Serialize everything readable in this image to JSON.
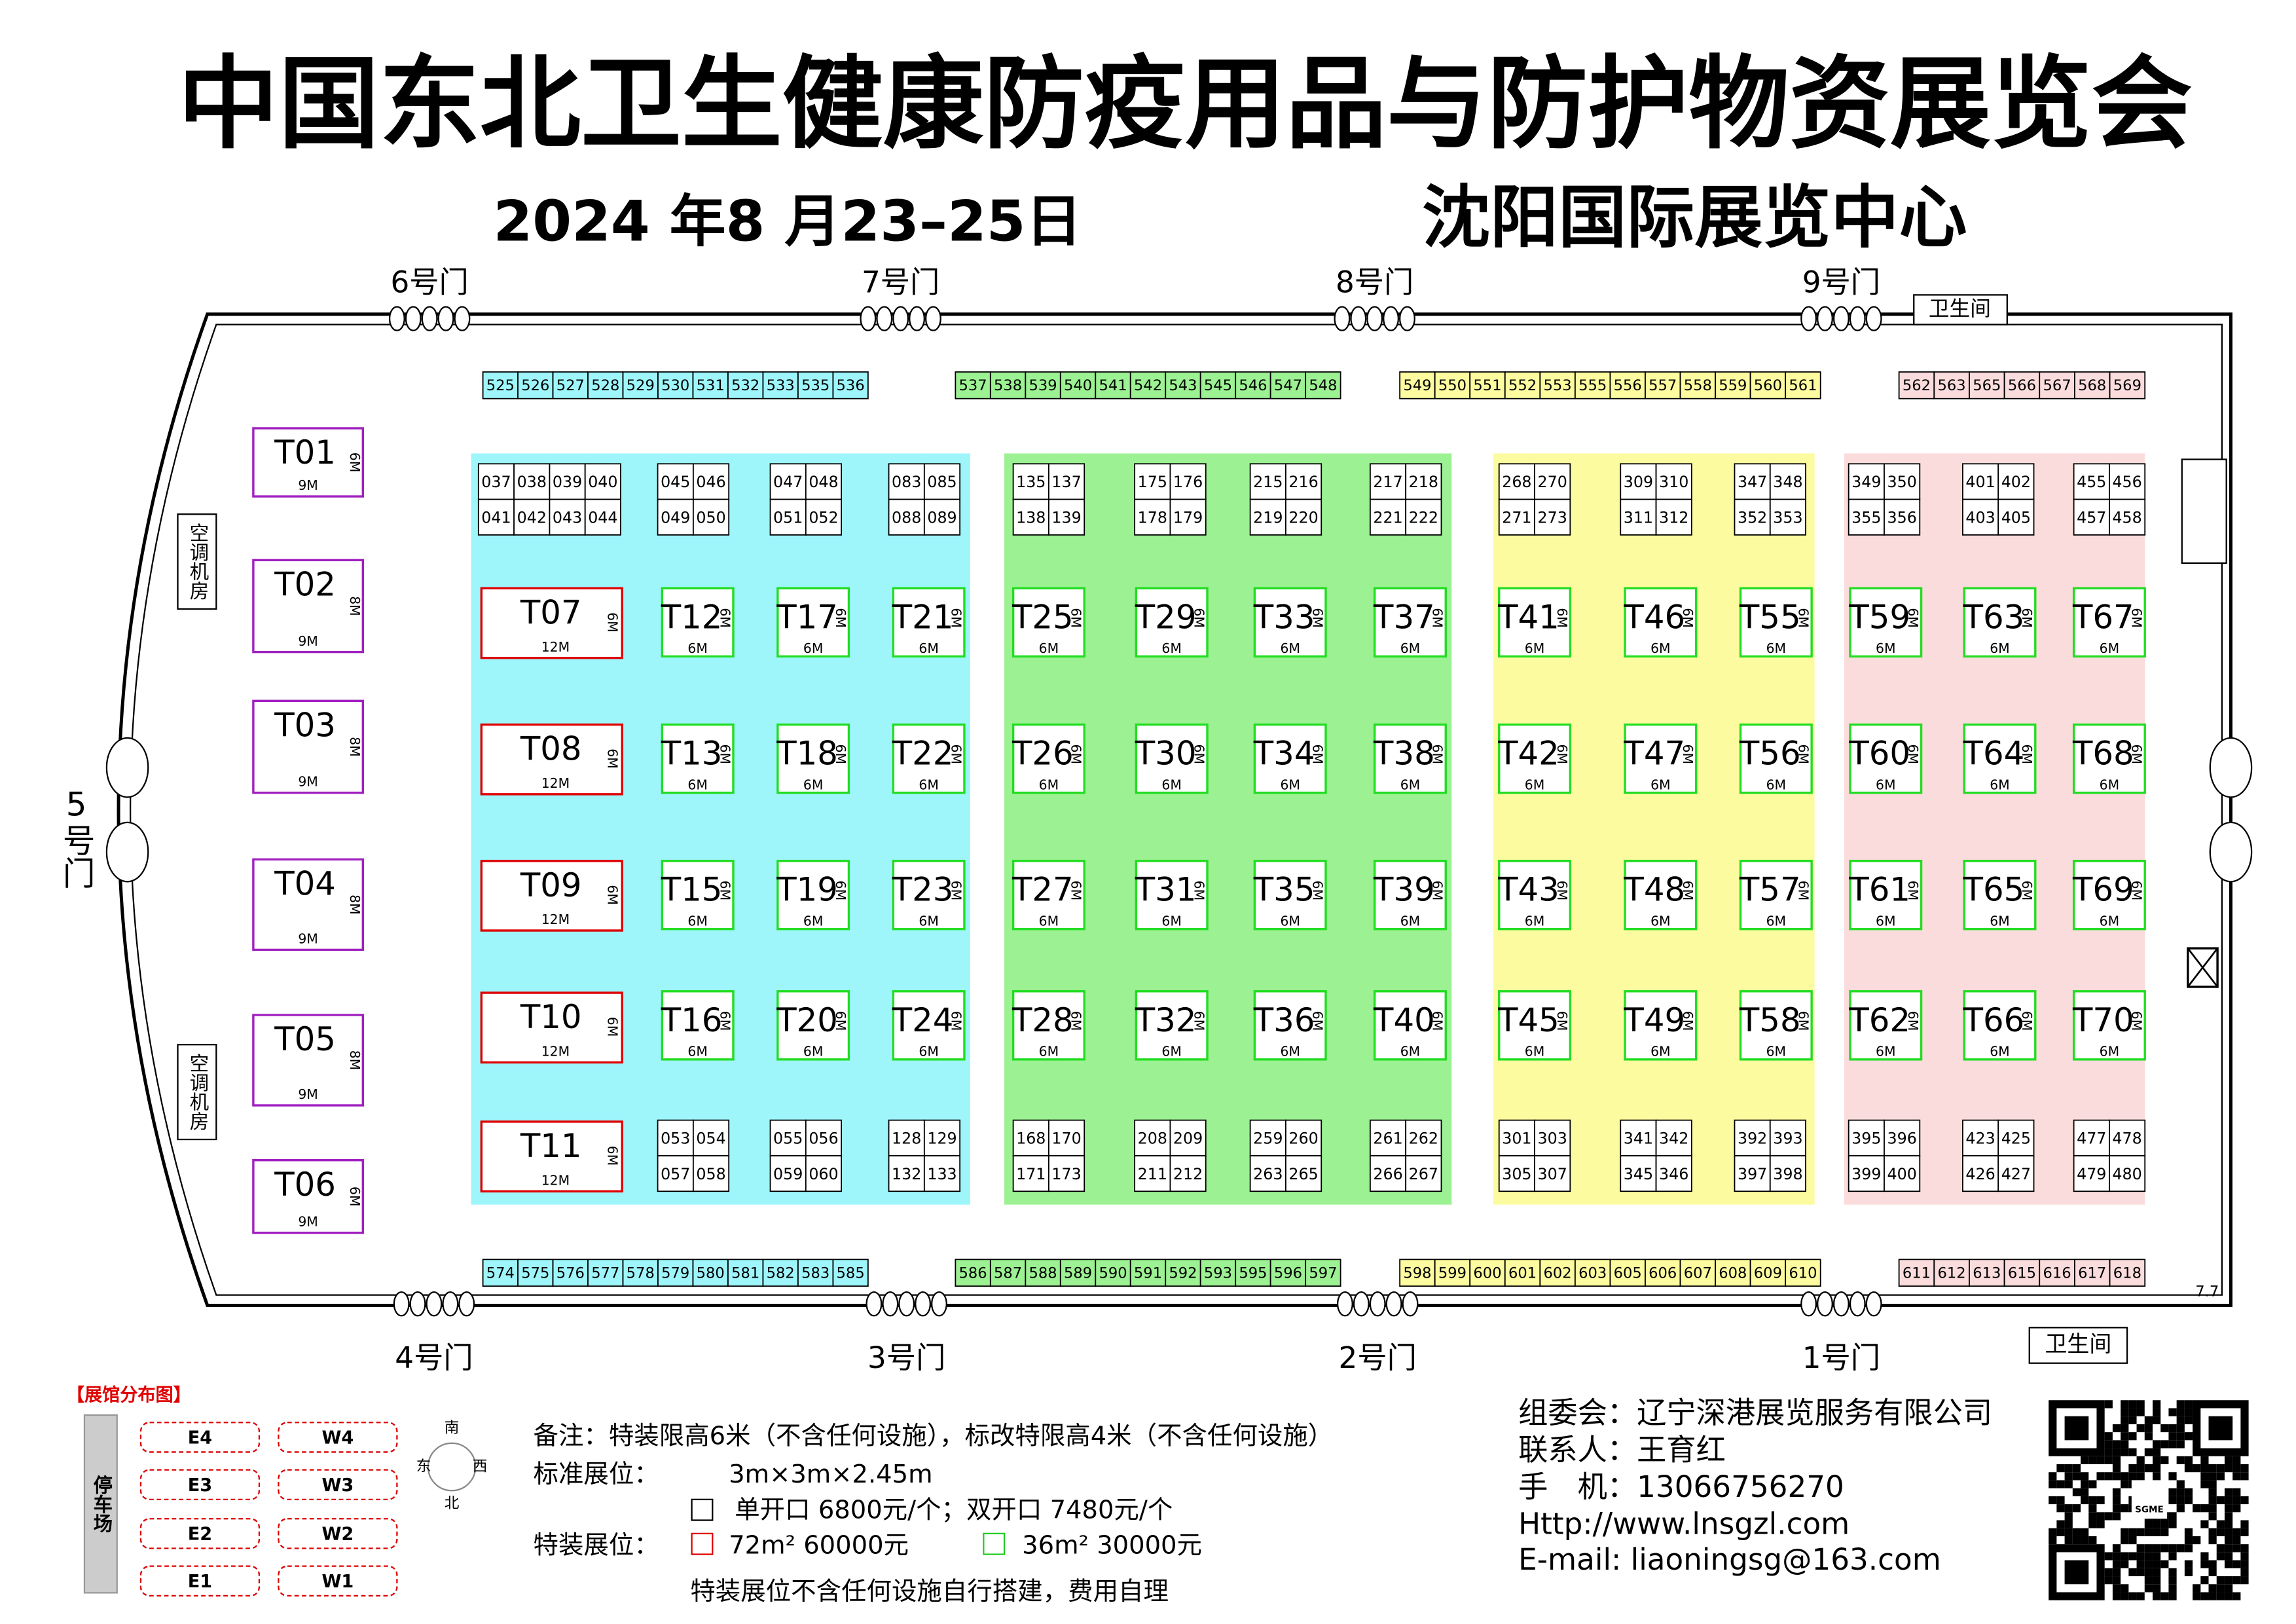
{
  "header": {
    "title": "中国东北卫生健康防疫用品与防护物资展览会",
    "date": "2024 年8 月23–25日",
    "venue": "沈阳国际展览中心"
  },
  "doors": {
    "top": [
      "6号门",
      "7号门",
      "8号门",
      "9号门"
    ],
    "bottom": [
      "4号门",
      "3号门",
      "2号门",
      "1号门"
    ],
    "left": "5号门"
  },
  "facilities": {
    "toilets": [
      "卫生间",
      "卫生间"
    ],
    "ac_rooms": [
      "空调机房",
      "空调机房"
    ]
  },
  "hall_mark": "7.7",
  "zones": [
    {
      "color": "#9ef6fb",
      "top_row": [
        "525",
        "526",
        "527",
        "528",
        "529",
        "530",
        "531",
        "532",
        "533",
        "535",
        "536"
      ],
      "bottom_row": [
        "574",
        "575",
        "576",
        "577",
        "578",
        "579",
        "580",
        "581",
        "582",
        "583",
        "585"
      ],
      "top_blocks": [
        [
          [
            "037",
            "038",
            "039",
            "040"
          ],
          [
            "041",
            "042",
            "043",
            "044"
          ]
        ],
        [
          [
            "045",
            "046"
          ],
          [
            "049",
            "050"
          ]
        ],
        [
          [
            "047",
            "048"
          ],
          [
            "051",
            "052"
          ]
        ],
        [
          [
            "083",
            "085"
          ],
          [
            "088",
            "089"
          ]
        ]
      ],
      "bottom_blocks": [
        [
          [
            "053",
            "054"
          ],
          [
            "057",
            "058"
          ]
        ],
        [
          [
            "055",
            "056"
          ],
          [
            "059",
            "060"
          ]
        ],
        [
          [
            "128",
            "129"
          ],
          [
            "132",
            "133"
          ]
        ]
      ],
      "t_columns": [
        [
          {
            "label": "T12",
            "side": "6M",
            "front": "6M"
          },
          {
            "label": "T13",
            "side": "6M",
            "front": "6M"
          },
          {
            "label": "T15",
            "side": "6M",
            "front": "6M"
          },
          {
            "label": "T16",
            "side": "6M",
            "front": "6M"
          }
        ],
        [
          {
            "label": "T17",
            "side": "6M",
            "front": "6M"
          },
          {
            "label": "T18",
            "side": "6M",
            "front": "6M"
          },
          {
            "label": "T19",
            "side": "6M",
            "front": "6M"
          },
          {
            "label": "T20",
            "side": "6M",
            "front": "6M"
          }
        ],
        [
          {
            "label": "T21",
            "side": "6M",
            "front": "6M"
          },
          {
            "label": "T22",
            "side": "6M",
            "front": "6M"
          },
          {
            "label": "T23",
            "side": "6M",
            "front": "6M"
          },
          {
            "label": "T24",
            "side": "6M",
            "front": "6M"
          }
        ]
      ]
    },
    {
      "color": "#9cf192",
      "top_row": [
        "537",
        "538",
        "539",
        "540",
        "541",
        "542",
        "543",
        "545",
        "546",
        "547",
        "548"
      ],
      "bottom_row": [
        "586",
        "587",
        "588",
        "589",
        "590",
        "591",
        "592",
        "593",
        "595",
        "596",
        "597"
      ],
      "top_blocks": [
        [
          [
            "135",
            "137"
          ],
          [
            "138",
            "139"
          ]
        ],
        [
          [
            "175",
            "176"
          ],
          [
            "178",
            "179"
          ]
        ],
        [
          [
            "215",
            "216"
          ],
          [
            "219",
            "220"
          ]
        ],
        [
          [
            "217",
            "218"
          ],
          [
            "221",
            "222"
          ]
        ]
      ],
      "bottom_blocks": [
        [
          [
            "168",
            "170"
          ],
          [
            "171",
            "173"
          ]
        ],
        [
          [
            "208",
            "209"
          ],
          [
            "211",
            "212"
          ]
        ],
        [
          [
            "259",
            "260"
          ],
          [
            "263",
            "265"
          ]
        ],
        [
          [
            "261",
            "262"
          ],
          [
            "266",
            "267"
          ]
        ]
      ],
      "t_columns": [
        [
          {
            "label": "T25",
            "side": "6M",
            "front": "6M"
          },
          {
            "label": "T26",
            "side": "6M",
            "front": "6M"
          },
          {
            "label": "T27",
            "side": "6M",
            "front": "6M"
          },
          {
            "label": "T28",
            "side": "6M",
            "front": "6M"
          }
        ],
        [
          {
            "label": "T29",
            "side": "6M",
            "front": "6M"
          },
          {
            "label": "T30",
            "side": "6M",
            "front": "6M"
          },
          {
            "label": "T31",
            "side": "6M",
            "front": "6M"
          },
          {
            "label": "T32",
            "side": "6M",
            "front": "6M"
          }
        ],
        [
          {
            "label": "T33",
            "side": "6M",
            "front": "6M"
          },
          {
            "label": "T34",
            "side": "6M",
            "front": "6M"
          },
          {
            "label": "T35",
            "side": "6M",
            "front": "6M"
          },
          {
            "label": "T36",
            "side": "6M",
            "front": "6M"
          }
        ],
        [
          {
            "label": "T37",
            "side": "6M",
            "front": "6M"
          },
          {
            "label": "T38",
            "side": "6M",
            "front": "6M"
          },
          {
            "label": "T39",
            "side": "6M",
            "front": "6M"
          },
          {
            "label": "T40",
            "side": "6M",
            "front": "6M"
          }
        ]
      ]
    },
    {
      "color": "#fdfb9f",
      "top_row": [
        "549",
        "550",
        "551",
        "552",
        "553",
        "555",
        "556",
        "557",
        "558",
        "559",
        "560",
        "561"
      ],
      "bottom_row": [
        "598",
        "599",
        "600",
        "601",
        "602",
        "603",
        "605",
        "606",
        "607",
        "608",
        "609",
        "610"
      ],
      "top_blocks": [
        [
          [
            "268",
            "270"
          ],
          [
            "271",
            "273"
          ]
        ],
        [
          [
            "309",
            "310"
          ],
          [
            "311",
            "312"
          ]
        ],
        [
          [
            "347",
            "348"
          ],
          [
            "352",
            "353"
          ]
        ]
      ],
      "bottom_blocks": [
        [
          [
            "301",
            "303"
          ],
          [
            "305",
            "307"
          ]
        ],
        [
          [
            "341",
            "342"
          ],
          [
            "345",
            "346"
          ]
        ],
        [
          [
            "392",
            "393"
          ],
          [
            "397",
            "398"
          ]
        ]
      ],
      "t_columns": [
        [
          {
            "label": "T41",
            "side": "6M",
            "front": "6M"
          },
          {
            "label": "T42",
            "side": "6M",
            "front": "6M"
          },
          {
            "label": "T43",
            "side": "6M",
            "front": "6M"
          },
          {
            "label": "T45",
            "side": "6M",
            "front": "6M"
          }
        ],
        [
          {
            "label": "T46",
            "side": "6M",
            "front": "6M"
          },
          {
            "label": "T47",
            "side": "6M",
            "front": "6M"
          },
          {
            "label": "T48",
            "side": "6M",
            "front": "6M"
          },
          {
            "label": "T49",
            "side": "6M",
            "front": "6M"
          }
        ],
        [
          {
            "label": "T55",
            "side": "6M",
            "front": "6M"
          },
          {
            "label": "T56",
            "side": "6M",
            "front": "6M"
          },
          {
            "label": "T57",
            "side": "6M",
            "front": "6M"
          },
          {
            "label": "T58",
            "side": "6M",
            "front": "6M"
          }
        ]
      ]
    },
    {
      "color": "#fbdcdc",
      "top_row": [
        "562",
        "563",
        "565",
        "566",
        "567",
        "568",
        "569"
      ],
      "bottom_row": [
        "611",
        "612",
        "613",
        "615",
        "616",
        "617",
        "618"
      ],
      "top_blocks": [
        [
          [
            "349",
            "350"
          ],
          [
            "355",
            "356"
          ]
        ],
        [
          [
            "401",
            "402"
          ],
          [
            "403",
            "405"
          ]
        ],
        [
          [
            "455",
            "456"
          ],
          [
            "457",
            "458"
          ]
        ]
      ],
      "bottom_blocks": [
        [
          [
            "395",
            "396"
          ],
          [
            "399",
            "400"
          ]
        ],
        [
          [
            "423",
            "425"
          ],
          [
            "426",
            "427"
          ]
        ],
        [
          [
            "477",
            "478"
          ],
          [
            "479",
            "480"
          ]
        ]
      ],
      "t_columns": [
        [
          {
            "label": "T59",
            "side": "6M",
            "front": "6M"
          },
          {
            "label": "T60",
            "side": "6M",
            "front": "6M"
          },
          {
            "label": "T61",
            "side": "6M",
            "front": "6M"
          },
          {
            "label": "T62",
            "side": "6M",
            "front": "6M"
          }
        ],
        [
          {
            "label": "T63",
            "side": "6M",
            "front": "6M"
          },
          {
            "label": "T64",
            "side": "6M",
            "front": "6M"
          },
          {
            "label": "T65",
            "side": "6M",
            "front": "6M"
          },
          {
            "label": "T66",
            "side": "6M",
            "front": "6M"
          }
        ],
        [
          {
            "label": "T67",
            "side": "6M",
            "front": "6M"
          },
          {
            "label": "T68",
            "side": "6M",
            "front": "6M"
          },
          {
            "label": "T69",
            "side": "6M",
            "front": "6M"
          },
          {
            "label": "T70",
            "side": "6M",
            "front": "6M"
          }
        ]
      ]
    }
  ],
  "red_booths": [
    {
      "label": "T07",
      "side": "6M",
      "front": "12M"
    },
    {
      "label": "T08",
      "side": "6M",
      "front": "12M"
    },
    {
      "label": "T09",
      "side": "6M",
      "front": "12M"
    },
    {
      "label": "T10",
      "side": "6M",
      "front": "12M"
    },
    {
      "label": "T11",
      "side": "6M",
      "front": "12M"
    }
  ],
  "purple_booths": [
    {
      "label": "T01",
      "side": "6M",
      "front": "9M"
    },
    {
      "label": "T02",
      "side": "8M",
      "front": "9M"
    },
    {
      "label": "T03",
      "side": "8M",
      "front": "9M"
    },
    {
      "label": "T04",
      "side": "8M",
      "front": "9M"
    },
    {
      "label": "T05",
      "side": "8M",
      "front": "9M"
    },
    {
      "label": "T06",
      "side": "6M",
      "front": "9M"
    }
  ],
  "site_map": {
    "title": "【展馆分布图】",
    "parking": "停车场",
    "east": [
      "E4",
      "E3",
      "E2",
      "E1"
    ],
    "west": [
      "W4",
      "W3",
      "W2",
      "W1"
    ],
    "compass": {
      "south": "南",
      "east": "东",
      "west": "西",
      "north": "北"
    }
  },
  "notes": {
    "remark": "备注：特装限高6米（不含任何设施），标改特限高4米（不含任何设施）",
    "standard_label": "标准展位：",
    "standard_size": "3m×3m×2.45m",
    "standard_price": "单开口 6800元/个；双开口 7480元/个",
    "special_label": "特装展位：",
    "special_72": "72m² 60000元",
    "special_36": "36m² 30000元",
    "special_note": "特装展位不含任何设施自行搭建，费用自理"
  },
  "contact": {
    "organizer": "组委会：辽宁深港展览服务有限公司",
    "person": "联系人：王育红",
    "phone": "手　机：13066756270",
    "web": "Http://www.lnsgzl.com",
    "email": "E-mail: liaoningsg@163.com",
    "qr_logo": "SGME"
  }
}
